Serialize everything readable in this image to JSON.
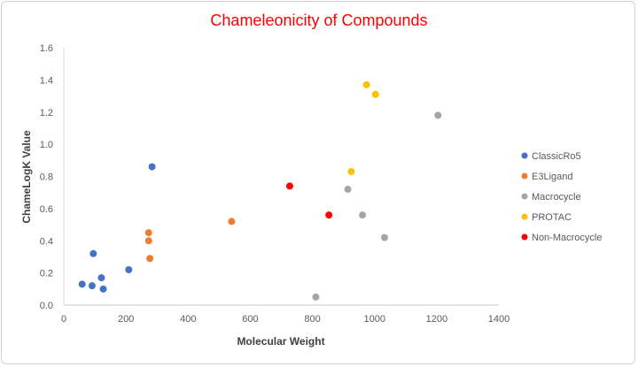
{
  "chart_data": {
    "type": "scatter",
    "title": "Chameleonicity of Compounds",
    "xlabel": "Molecular Weight",
    "ylabel": "ChameLogK Value",
    "xlim": [
      0,
      1400
    ],
    "ylim": [
      0,
      1.6
    ],
    "xticks": [
      0,
      200,
      400,
      600,
      800,
      1000,
      1200,
      1400
    ],
    "yticks": [
      "0.0",
      "0.2",
      "0.4",
      "0.6",
      "0.8",
      "1.0",
      "1.2",
      "1.4",
      "1.6"
    ],
    "grid": false,
    "legend_position": "right",
    "series": [
      {
        "name": "ClassicRo5",
        "color": "#4472c4",
        "points": [
          [
            284,
            0.86
          ],
          [
            95,
            0.32
          ],
          [
            209,
            0.22
          ],
          [
            121,
            0.17
          ],
          [
            59,
            0.13
          ],
          [
            91,
            0.12
          ],
          [
            127,
            0.1
          ]
        ]
      },
      {
        "name": "E3Ligand",
        "color": "#ed7d31",
        "points": [
          [
            273,
            0.45
          ],
          [
            273,
            0.4
          ],
          [
            277,
            0.29
          ],
          [
            540,
            0.52
          ]
        ]
      },
      {
        "name": "Macrocycle",
        "color": "#a5a5a5",
        "points": [
          [
            1204,
            1.18
          ],
          [
            914,
            0.72
          ],
          [
            961,
            0.56
          ],
          [
            1032,
            0.42
          ],
          [
            811,
            0.05
          ]
        ]
      },
      {
        "name": "PROTAC",
        "color": "#ffc000",
        "points": [
          [
            974,
            1.37
          ],
          [
            1003,
            1.31
          ],
          [
            925,
            0.83
          ]
        ]
      },
      {
        "name": "Non-Macrocycle",
        "color": "#ff0000",
        "points": [
          [
            727,
            0.74
          ],
          [
            853,
            0.56
          ]
        ]
      }
    ]
  }
}
